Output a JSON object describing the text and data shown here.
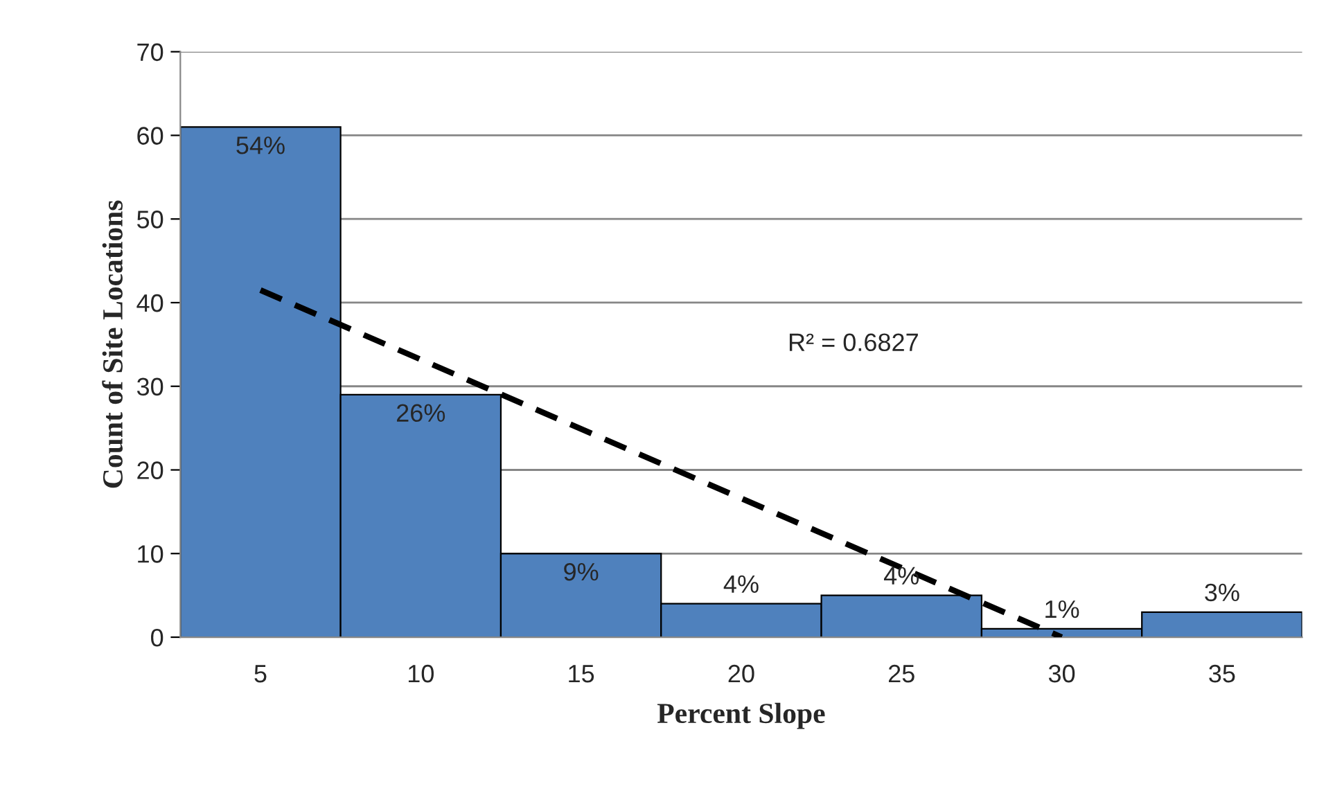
{
  "chart_data": {
    "type": "bar",
    "xlabel": "Percent Slope",
    "ylabel": "Count of Site Locations",
    "categories": [
      "5",
      "10",
      "15",
      "20",
      "25",
      "30",
      "35"
    ],
    "series": [
      {
        "color": "#4f81bd",
        "values": [
          61,
          29,
          10,
          4,
          5,
          1,
          3
        ]
      },
      {
        "type": "line",
        "color": "#000000",
        "x": [
          "5",
          "30"
        ],
        "values": [
          41.5,
          0
        ],
        "line_style": "dashed",
        "marker": "none"
      }
    ],
    "annotations": [
      "R² = 0.6827",
      {
        "text": "54%",
        "x": "5",
        "y": 61
      },
      {
        "text": "26%",
        "x": "10",
        "y": 29
      },
      {
        "text": "9%",
        "x": "15",
        "y": 10
      },
      {
        "text": "4%",
        "x": "20",
        "y": 4
      },
      {
        "text": "4%",
        "x": "25",
        "y": 5
      },
      {
        "text": "1%",
        "x": "30",
        "y": 1
      },
      {
        "text": "3%",
        "x": "35",
        "y": 3
      }
    ],
    "ylim": [
      0,
      70
    ],
    "yticks": [
      0,
      10,
      20,
      30,
      40,
      50,
      60,
      70
    ],
    "grid": "y",
    "legend": false
  }
}
